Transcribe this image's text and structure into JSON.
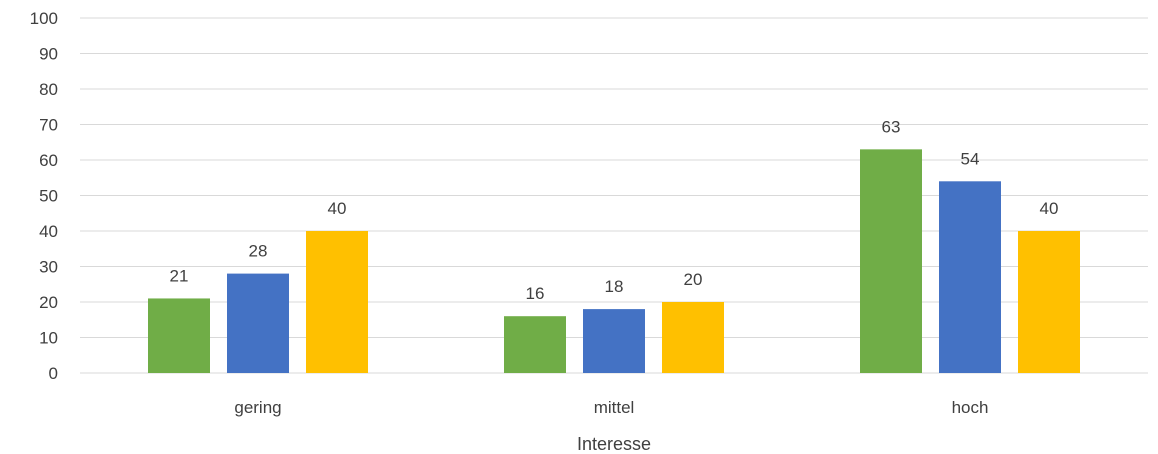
{
  "chart_data": {
    "type": "bar",
    "categories": [
      "gering",
      "mittel",
      "hoch"
    ],
    "series": [
      {
        "values": [
          21,
          16,
          63
        ],
        "color": "#70AD47"
      },
      {
        "values": [
          28,
          18,
          54
        ],
        "color": "#4472C4"
      },
      {
        "values": [
          40,
          20,
          40
        ],
        "color": "#FFC000"
      }
    ],
    "xlabel": "Interesse",
    "ylabel": "",
    "ylim": [
      0,
      100
    ],
    "yticks": [
      0,
      10,
      20,
      30,
      40,
      50,
      60,
      70,
      80,
      90,
      100
    ],
    "grid": true,
    "legend": "none",
    "data_labels": true,
    "gridline_color": "#D9D9D9",
    "text_color": "#404040"
  }
}
